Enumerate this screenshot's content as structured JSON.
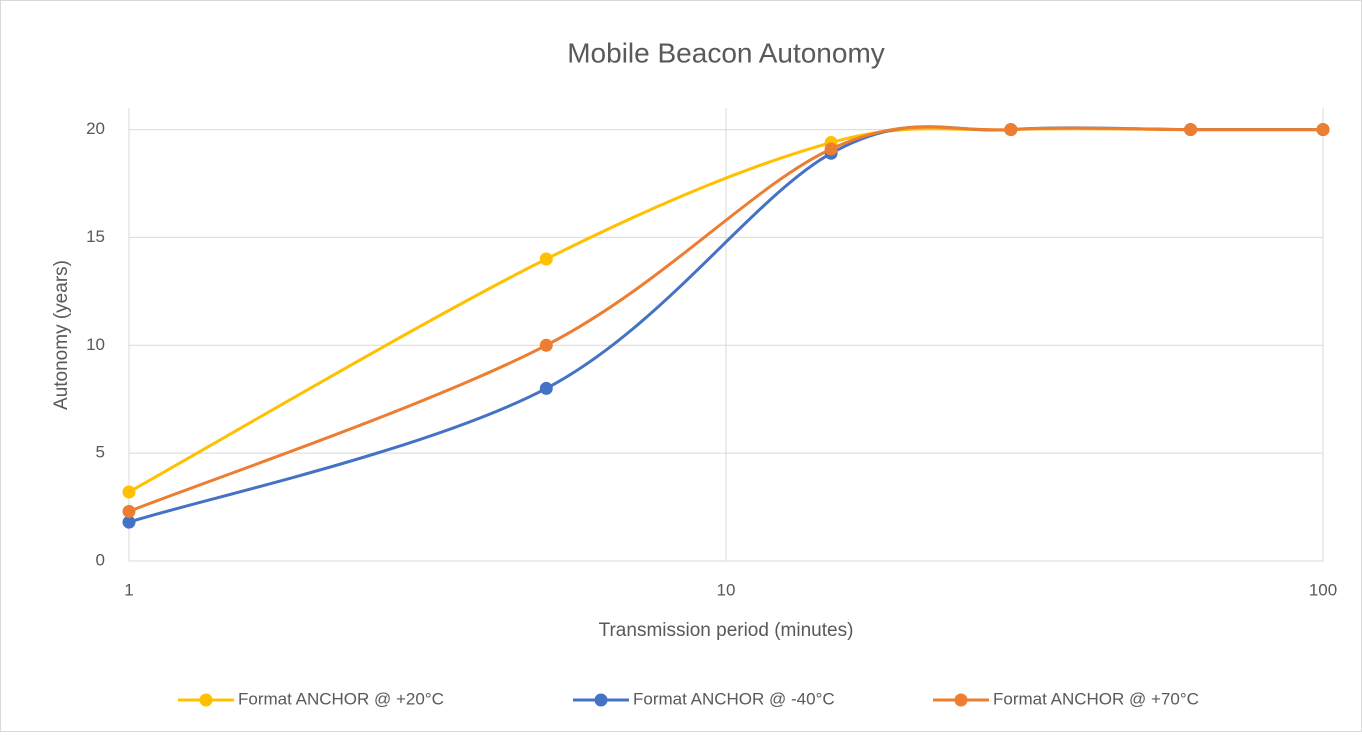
{
  "chart_data": {
    "type": "line",
    "title": "Mobile Beacon Autonomy",
    "x_label": "Transmission period (minutes)",
    "y_label": "Autonomy (years)",
    "x": [
      1,
      5,
      15,
      30,
      60,
      100
    ],
    "series": [
      {
        "name": "Format ANCHOR @ +20°C",
        "color": "#FFC000",
        "values": [
          3.2,
          14,
          19.4,
          20,
          20,
          20
        ]
      },
      {
        "name": "Format ANCHOR @ -40°C",
        "color": "#4472C4",
        "values": [
          1.8,
          8,
          18.9,
          20,
          20,
          20
        ]
      },
      {
        "name": "Format ANCHOR @ +70°C",
        "color": "#ED7D31",
        "values": [
          2.3,
          10,
          19.1,
          20,
          20,
          20
        ]
      }
    ],
    "xlim": [
      1,
      100
    ],
    "xticks": [
      1,
      10,
      100
    ],
    "xlog": true,
    "ylim": [
      0,
      21
    ],
    "yticks": [
      0,
      5,
      10,
      15,
      20
    ],
    "grid": true,
    "smooth": true,
    "legend": "bottom"
  }
}
